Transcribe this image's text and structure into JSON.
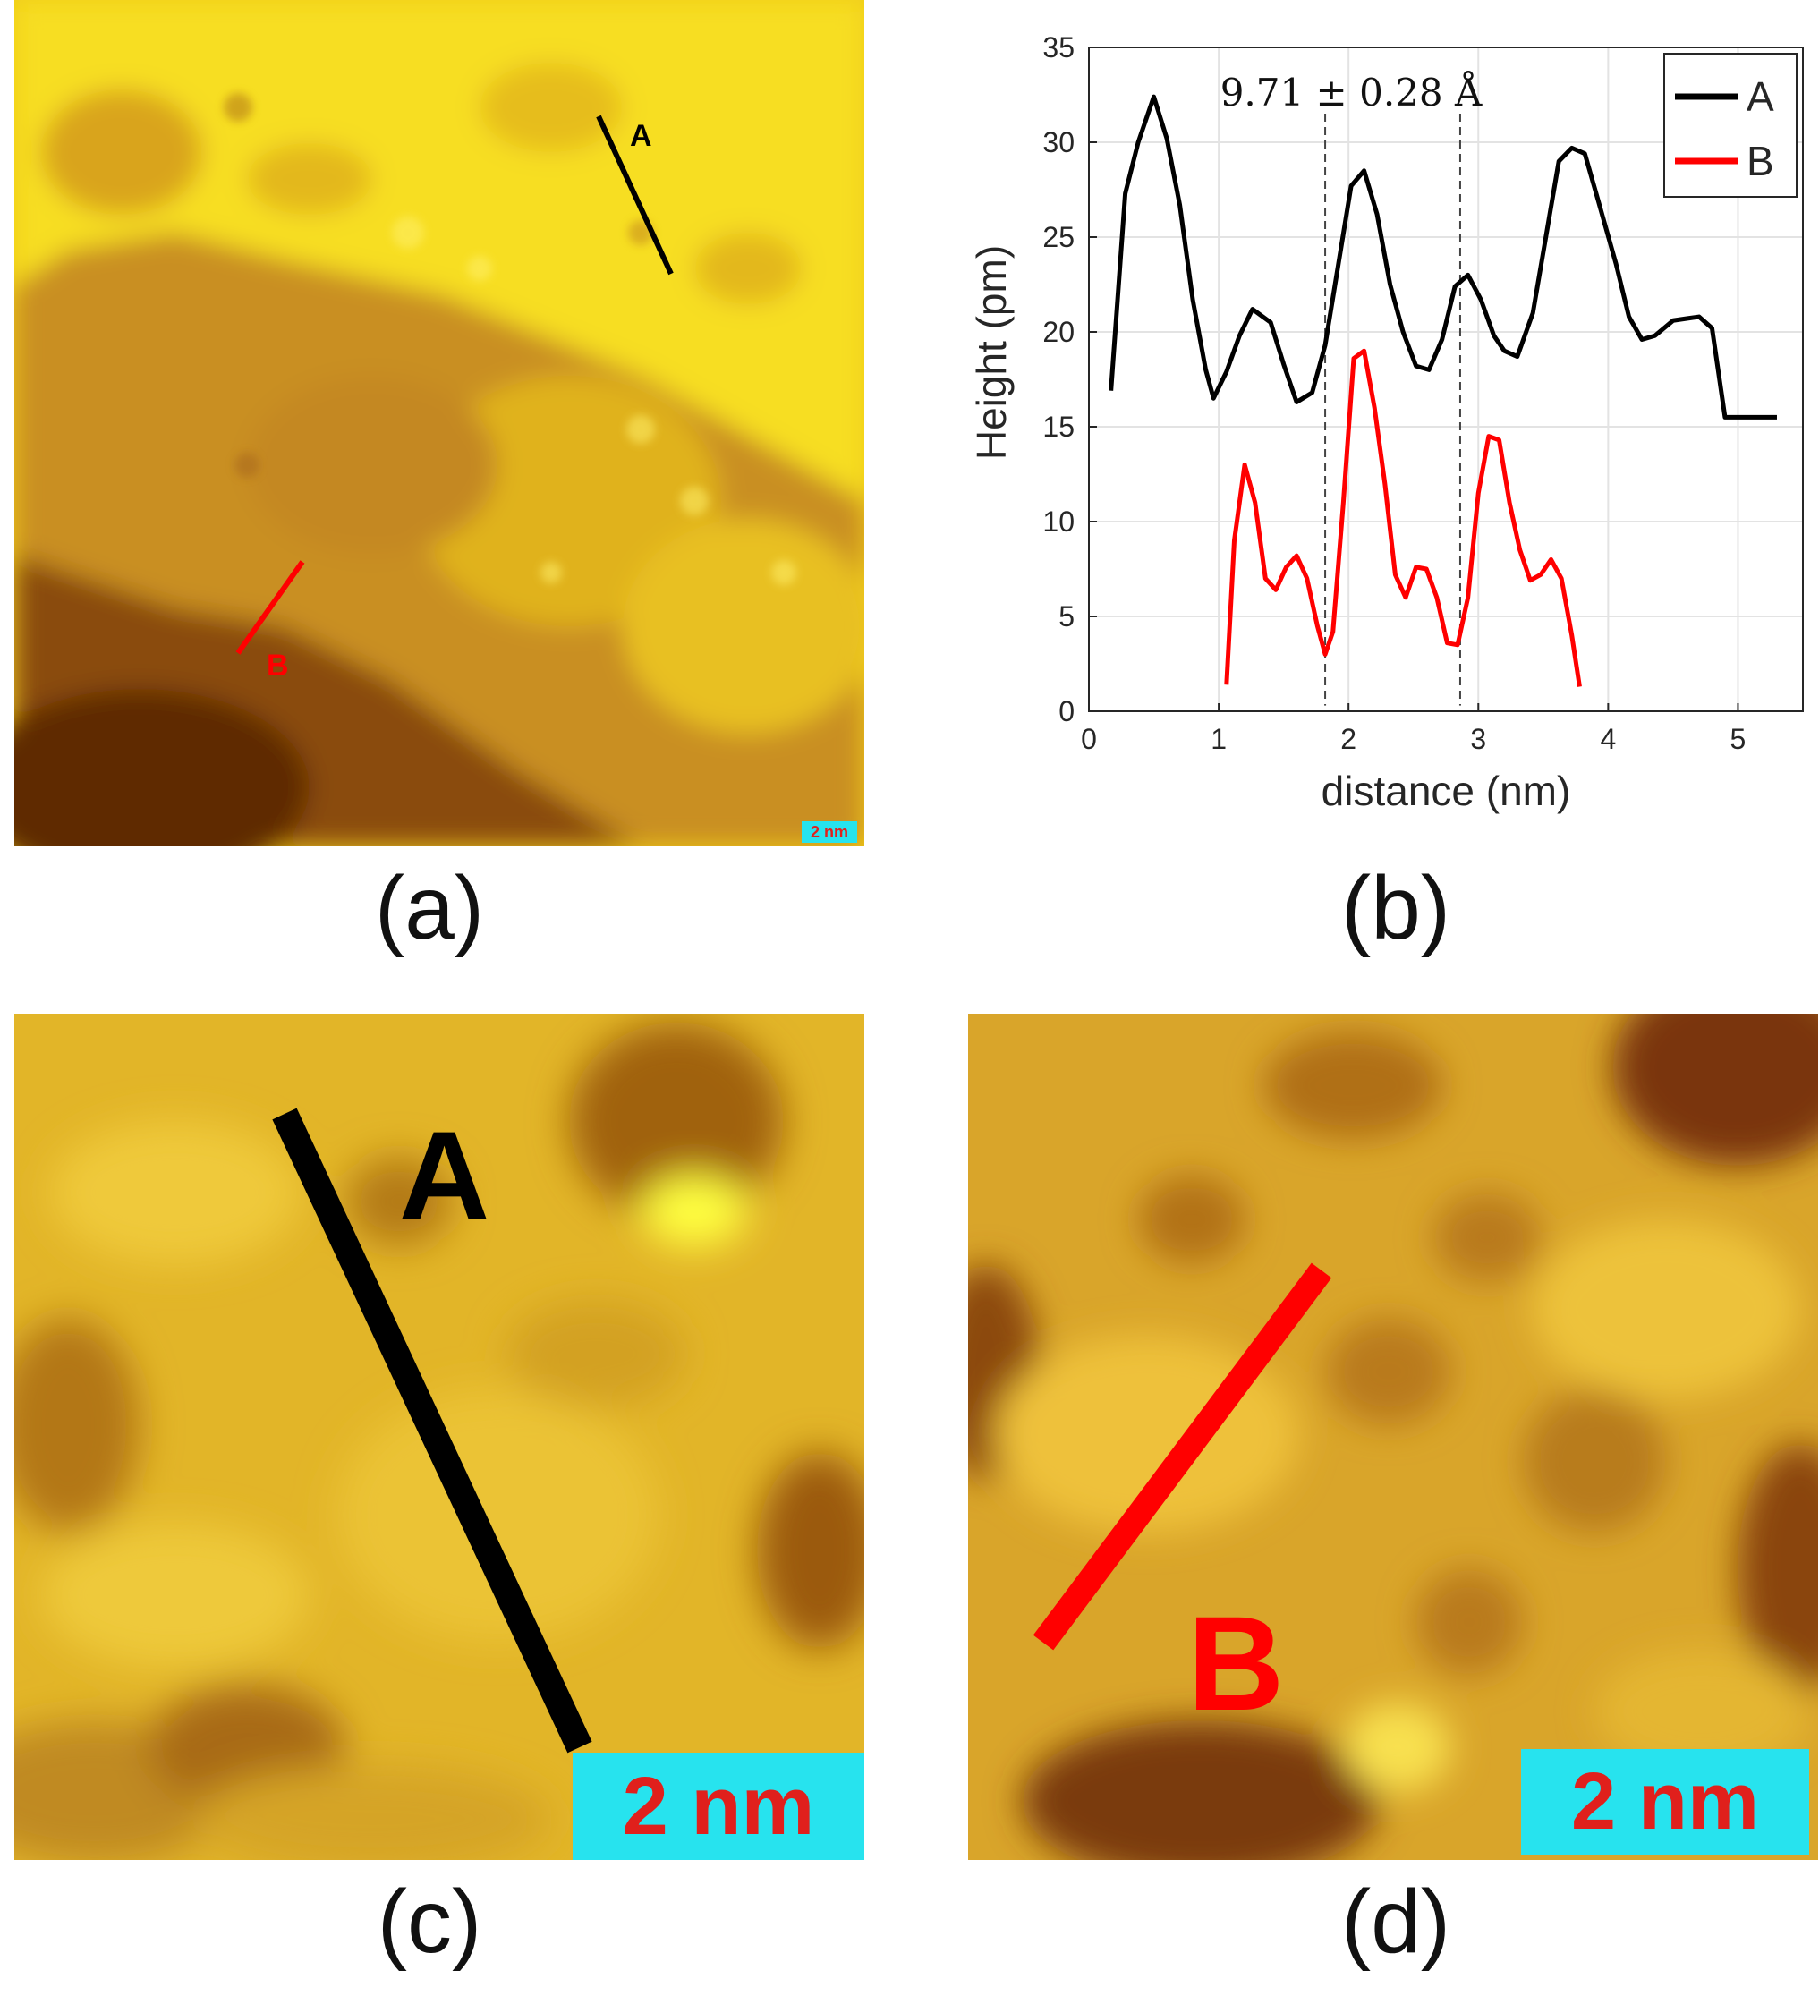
{
  "figure": {
    "captions": {
      "a": "(a)",
      "b": "(b)",
      "c": "(c)",
      "d": "(d)"
    },
    "scale_bar": "2 nm",
    "line_labels": {
      "a": "A",
      "b": "B"
    },
    "colors": {
      "line_a": "#000000",
      "line_b": "#ff0000",
      "scalebar_bg": "#27e3ee",
      "scalebar_text": "#e0201c"
    }
  },
  "chart_data": {
    "type": "line",
    "xlabel": "distance (nm)",
    "ylabel": "Height (pm)",
    "xlim": [
      0,
      5.5
    ],
    "ylim": [
      0,
      35
    ],
    "xticks": [
      0,
      1,
      2,
      3,
      4,
      5
    ],
    "yticks": [
      0,
      5,
      10,
      15,
      20,
      25,
      30,
      35
    ],
    "grid": true,
    "legend_position": "top-right",
    "annotation": {
      "text": "9.71 ± 0.28 Å",
      "markers_x": [
        1.82,
        2.86
      ]
    },
    "series": [
      {
        "name": "A",
        "color": "#000000",
        "x": [
          0.17,
          0.28,
          0.38,
          0.5,
          0.6,
          0.7,
          0.8,
          0.9,
          0.96,
          1.06,
          1.16,
          1.26,
          1.4,
          1.5,
          1.6,
          1.72,
          1.82,
          1.92,
          2.02,
          2.12,
          2.22,
          2.32,
          2.42,
          2.52,
          2.62,
          2.72,
          2.82,
          2.92,
          3.02,
          3.12,
          3.2,
          3.3,
          3.42,
          3.52,
          3.62,
          3.72,
          3.82,
          3.92,
          4.06,
          4.16,
          4.26,
          4.36,
          4.5,
          4.6,
          4.7,
          4.8,
          4.9,
          5.0,
          5.12,
          5.2,
          5.3
        ],
        "values": [
          16.9,
          27.3,
          30,
          32.4,
          30.2,
          26.7,
          21.7,
          18,
          16.5,
          17.9,
          19.8,
          21.2,
          20.5,
          18.3,
          16.3,
          16.8,
          19.3,
          23.5,
          27.7,
          28.5,
          26.2,
          22.5,
          20,
          18.2,
          18,
          19.6,
          22.4,
          23,
          21.7,
          19.8,
          19,
          18.7,
          21,
          25,
          29,
          29.7,
          29.4,
          27,
          23.6,
          20.8,
          19.6,
          19.8,
          20.6,
          20.7,
          20.8,
          20.2,
          15.5,
          15.5,
          15.5,
          15.5,
          15.5
        ]
      },
      {
        "name": "B",
        "color": "#ff0000",
        "x": [
          1.06,
          1.12,
          1.2,
          1.28,
          1.36,
          1.44,
          1.52,
          1.6,
          1.68,
          1.76,
          1.82,
          1.88,
          1.96,
          2.04,
          2.12,
          2.2,
          2.28,
          2.36,
          2.44,
          2.52,
          2.6,
          2.68,
          2.76,
          2.84,
          2.92,
          3.0,
          3.08,
          3.16,
          3.24,
          3.32,
          3.4,
          3.48,
          3.56,
          3.64,
          3.72,
          3.78
        ],
        "values": [
          1.4,
          9,
          13,
          11,
          7,
          6.4,
          7.6,
          8.2,
          7,
          4.5,
          3,
          4.2,
          11,
          18.6,
          19,
          16,
          12,
          7.2,
          6,
          7.6,
          7.5,
          6,
          3.6,
          3.5,
          6,
          11.5,
          14.5,
          14.3,
          11,
          8.5,
          6.9,
          7.2,
          8,
          7,
          4,
          1.3
        ]
      }
    ]
  }
}
